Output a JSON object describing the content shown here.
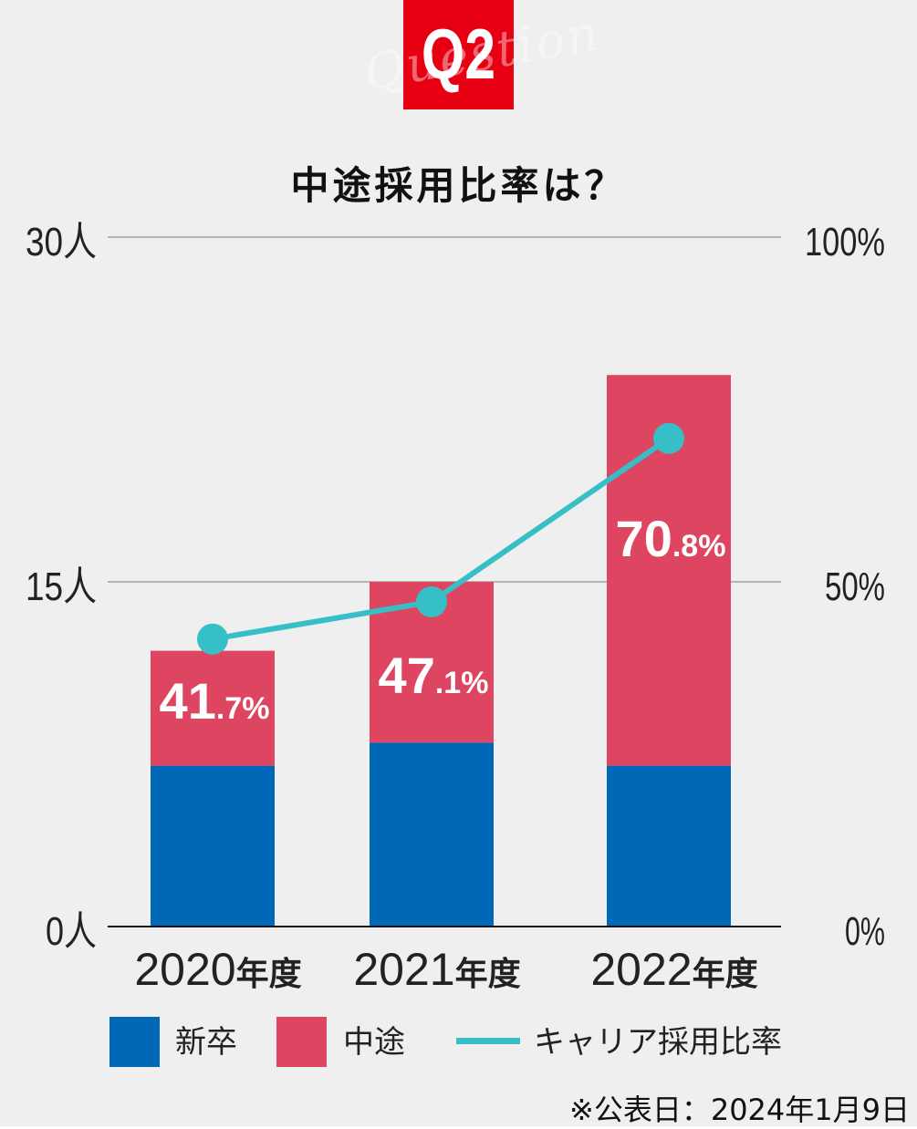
{
  "badge": {
    "script_text": "Question",
    "number": "Q2",
    "color": "#e60012"
  },
  "chart_data": {
    "type": "bar",
    "stacked": true,
    "title": "中途採用比率は？",
    "categories": [
      "2020年度",
      "2021年度",
      "2022年度"
    ],
    "category_parts": [
      {
        "year": "2020",
        "suffix": "年度"
      },
      {
        "year": "2021",
        "suffix": "年度"
      },
      {
        "year": "2022",
        "suffix": "年度"
      }
    ],
    "series": [
      {
        "name": "新卒",
        "values": [
          7,
          8,
          7
        ],
        "color": "#0068b7",
        "axis": "left"
      },
      {
        "name": "中途",
        "values": [
          5,
          7,
          17
        ],
        "color": "#de4561",
        "axis": "left"
      },
      {
        "name": "キャリア採用比率",
        "type": "line",
        "values": [
          41.7,
          47.1,
          70.8
        ],
        "color": "#36bfc6",
        "axis": "right"
      }
    ],
    "rate_labels": [
      {
        "main": "41",
        "small": ".7%"
      },
      {
        "main": "47",
        "small": ".1%"
      },
      {
        "main": "70",
        "small": ".8%"
      }
    ],
    "y_left": {
      "ylim": [
        0,
        30
      ],
      "ticks": [
        "0人",
        "15人",
        "30人"
      ]
    },
    "y_right": {
      "ylim": [
        0,
        100
      ],
      "ticks": [
        "0%",
        "50%",
        "100%"
      ]
    },
    "grid": true,
    "legend_position": "bottom"
  },
  "footnote": "※公表日：2024年1月9日"
}
